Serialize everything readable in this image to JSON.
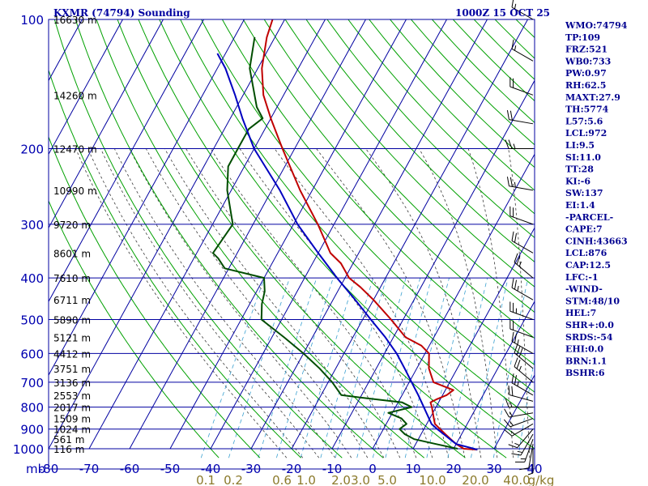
{
  "window": {
    "title": "KXMR (74794) Sounding",
    "time": "1000Z 15 OCT 25"
  },
  "colors": {
    "grid": "#0000a0",
    "dry_adiabat": "#00a000",
    "moist_adiabat": "#3a3a3a",
    "mixing_ratio": "#3aa0d0",
    "temperature": "#c00000",
    "dewpoint": "#004d00",
    "parcel": "#0000c0"
  },
  "chart_data": {
    "type": "line",
    "title": "KXMR (74794) Sounding",
    "xlabel": "",
    "ylabel": "mb",
    "y_scale": "log",
    "skew": true,
    "xlim": [
      -80,
      40
    ],
    "ylim": [
      1000,
      100
    ],
    "pressure_ticks": [
      100,
      200,
      300,
      400,
      500,
      600,
      700,
      800,
      900,
      1000
    ],
    "temperature_ticks": [
      -80,
      -70,
      -60,
      -50,
      -40,
      -30,
      -20,
      -10,
      0,
      10,
      20,
      30,
      40
    ],
    "mixing_ratio_labels": [
      "0.1",
      "0.2",
      "0.6",
      "1.0",
      "2.0",
      "3.0",
      "5.0",
      "10.0",
      "20.0",
      "40.0"
    ],
    "mixing_ratio_unit": "g/kg",
    "height_labels": [
      {
        "p": 100,
        "label": "16630 m"
      },
      {
        "p": 150,
        "label": "14260 m"
      },
      {
        "p": 200,
        "label": "12470 m"
      },
      {
        "p": 250,
        "label": "10990 m"
      },
      {
        "p": 300,
        "label": "9720 m"
      },
      {
        "p": 350,
        "label": "8601 m"
      },
      {
        "p": 400,
        "label": "7610 m"
      },
      {
        "p": 450,
        "label": "6711 m"
      },
      {
        "p": 500,
        "label": "5890 m"
      },
      {
        "p": 550,
        "label": "5121 m"
      },
      {
        "p": 600,
        "label": "4412 m"
      },
      {
        "p": 650,
        "label": "3751 m"
      },
      {
        "p": 700,
        "label": "3136 m"
      },
      {
        "p": 750,
        "label": "2553 m"
      },
      {
        "p": 800,
        "label": "2017 m"
      },
      {
        "p": 850,
        "label": "1509 m"
      },
      {
        "p": 900,
        "label": "1024 m"
      },
      {
        "p": 950,
        "label": "561 m"
      },
      {
        "p": 1000,
        "label": "116 m"
      }
    ],
    "series": [
      {
        "key": "temperature",
        "p": [
          1005,
          1000,
          975,
          950,
          925,
          900,
          875,
          850,
          825,
          800,
          780,
          768,
          750,
          730,
          700,
          650,
          600,
          575,
          550,
          500,
          450,
          420,
          400,
          370,
          350,
          300,
          250,
          200,
          170,
          150,
          130,
          110,
          100
        ],
        "t": [
          26,
          22.5,
          20,
          18,
          16,
          14,
          12,
          11,
          10,
          9,
          8,
          9,
          11,
          12,
          6,
          3,
          1,
          -2,
          -7,
          -13,
          -20,
          -25,
          -29,
          -33,
          -37,
          -44,
          -53,
          -63,
          -70,
          -75,
          -79,
          -82,
          -83
        ]
      },
      {
        "key": "dewpoint",
        "p": [
          1000,
          975,
          950,
          925,
          900,
          875,
          850,
          825,
          800,
          780,
          760,
          750,
          700,
          650,
          600,
          550,
          500,
          460,
          430,
          400,
          380,
          360,
          350,
          300,
          250,
          220,
          200,
          180,
          170,
          160,
          130,
          110
        ],
        "t": [
          21,
          15,
          9,
          6,
          4,
          5,
          3,
          -1,
          4,
          1,
          -10,
          -15,
          -19,
          -24,
          -30,
          -37,
          -45,
          -47,
          -48,
          -50,
          -61,
          -64,
          -66,
          -65,
          -71,
          -74,
          -74,
          -74,
          -72,
          -75,
          -82,
          -85
        ]
      },
      {
        "key": "parcel",
        "p": [
          1005,
          975,
          950,
          925,
          900,
          876,
          850,
          800,
          750,
          700,
          650,
          600,
          550,
          500,
          450,
          400,
          350,
          300,
          250,
          200,
          170,
          150,
          130,
          120
        ],
        "t": [
          26,
          20,
          17.8,
          15.6,
          13.3,
          11.2,
          9.8,
          7.0,
          4.0,
          0.6,
          -3.0,
          -7.0,
          -12.0,
          -18.0,
          -24.5,
          -32.0,
          -40.0,
          -49.0,
          -58.0,
          -70.0,
          -77.0,
          -82.0,
          -88.0,
          -92.0
        ]
      }
    ],
    "wind_barbs": [
      {
        "p": 1000,
        "dir": 180,
        "spd": 5
      },
      {
        "p": 975,
        "dir": 190,
        "spd": 10
      },
      {
        "p": 950,
        "dir": 200,
        "spd": 15
      },
      {
        "p": 925,
        "dir": 210,
        "spd": 15
      },
      {
        "p": 900,
        "dir": 220,
        "spd": 15
      },
      {
        "p": 875,
        "dir": 240,
        "spd": 15
      },
      {
        "p": 850,
        "dir": 250,
        "spd": 15
      },
      {
        "p": 825,
        "dir": 260,
        "spd": 15
      },
      {
        "p": 800,
        "dir": 270,
        "spd": 15
      },
      {
        "p": 775,
        "dir": 285,
        "spd": 20
      },
      {
        "p": 750,
        "dir": 300,
        "spd": 25
      },
      {
        "p": 700,
        "dir": 310,
        "spd": 25
      },
      {
        "p": 650,
        "dir": 310,
        "spd": 30
      },
      {
        "p": 600,
        "dir": 300,
        "spd": 25
      },
      {
        "p": 550,
        "dir": 290,
        "spd": 20
      },
      {
        "p": 500,
        "dir": 290,
        "spd": 25
      },
      {
        "p": 450,
        "dir": 300,
        "spd": 25
      },
      {
        "p": 400,
        "dir": 310,
        "spd": 25
      },
      {
        "p": 350,
        "dir": 300,
        "spd": 20
      },
      {
        "p": 300,
        "dir": 290,
        "spd": 20
      },
      {
        "p": 250,
        "dir": 280,
        "spd": 25
      },
      {
        "p": 200,
        "dir": 270,
        "spd": 25
      },
      {
        "p": 175,
        "dir": 280,
        "spd": 20
      },
      {
        "p": 150,
        "dir": 290,
        "spd": 20
      },
      {
        "p": 125,
        "dir": 300,
        "spd": 15
      },
      {
        "p": 100,
        "dir": 300,
        "spd": 15
      }
    ]
  },
  "indices": [
    "WMO:74794",
    "TP:109",
    "FRZ:521",
    "WB0:733",
    "PW:0.97",
    "RH:62.5",
    "MAXT:27.9",
    "TH:5774",
    "L57:5.6",
    "LCL:972",
    "LI:9.5",
    "SI:11.0",
    "TT:28",
    "KI:-6",
    "SW:137",
    "EI:1.4",
    "-PARCEL-",
    "CAPE:7",
    "CINH:43663",
    "LCL:876",
    "CAP:12.5",
    "LFC:-1",
    "-WIND-",
    "STM:48/10",
    "HEL:7",
    "SHR+:0.0",
    "SRDS:-54",
    "EHI:0.0",
    "BRN:1.1",
    "BSHR:6"
  ]
}
